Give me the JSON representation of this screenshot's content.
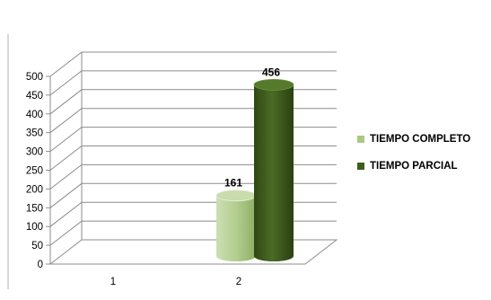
{
  "chart_data": {
    "type": "bar",
    "categories": [
      "1",
      "2"
    ],
    "series": [
      {
        "name": "TIEMPO COMPLETO",
        "values": [
          null,
          161
        ],
        "color": "#a9c983"
      },
      {
        "name": "TIEMPO PARCIAL",
        "values": [
          null,
          456
        ],
        "color": "#3f5d1b"
      }
    ],
    "data_labels": [
      "161",
      "456"
    ],
    "ylim": [
      0,
      500
    ],
    "yticks": [
      "0",
      "50",
      "100",
      "150",
      "200",
      "250",
      "300",
      "350",
      "400",
      "450",
      "500"
    ],
    "grid": true,
    "style": "3d-cylinder",
    "legend_position": "right"
  }
}
